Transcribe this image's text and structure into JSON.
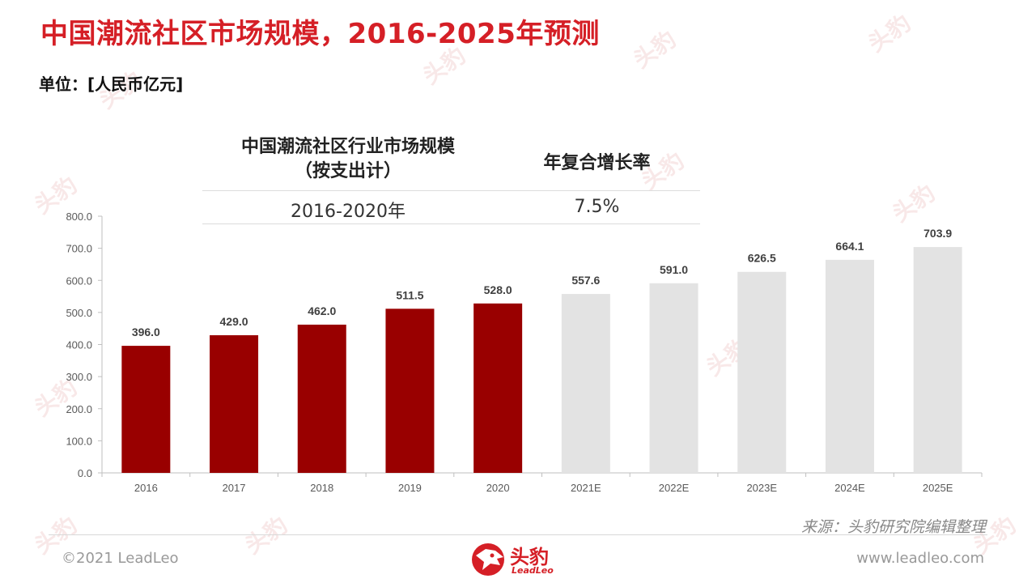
{
  "title": "中国潮流社区市场规模，2016-2025年预测",
  "unit": "单位：[人民币亿元]",
  "cagr_table": {
    "header_metric": "中国潮流社区行业市场规模",
    "header_metric_sub": "（按支出计）",
    "header_rate": "年复合增长率",
    "period": "2016-2020年",
    "rate": "7.5%"
  },
  "chart_data": {
    "type": "bar",
    "categories": [
      "2016",
      "2017",
      "2018",
      "2019",
      "2020",
      "2021E",
      "2022E",
      "2023E",
      "2024E",
      "2025E"
    ],
    "values": [
      396.0,
      429.0,
      462.0,
      511.5,
      528.0,
      557.6,
      591.0,
      626.5,
      664.1,
      703.9
    ],
    "value_labels": [
      "396.0",
      "429.0",
      "462.0",
      "511.5",
      "528.0",
      "557.6",
      "591.0",
      "626.5",
      "664.1",
      "703.9"
    ],
    "bar_colors": [
      "#990000",
      "#990000",
      "#990000",
      "#990000",
      "#990000",
      "#e3e3e3",
      "#e3e3e3",
      "#e3e3e3",
      "#e3e3e3",
      "#e3e3e3"
    ],
    "yticks": [
      "0.0",
      "100.0",
      "200.0",
      "300.0",
      "400.0",
      "500.0",
      "600.0",
      "700.0",
      "800.0"
    ],
    "ylim": [
      0,
      800
    ],
    "grid": false,
    "title": "",
    "xlabel": "",
    "ylabel": ""
  },
  "source": "来源：头豹研究院编辑整理",
  "footer": {
    "copyright": "©2021 LeadLeo",
    "website": "www.leadleo.com",
    "logo_text": "头豹",
    "logo_sub": "LeadLeo"
  },
  "watermark": {
    "text": "头豹",
    "sub": "LeadLeo",
    "color": "#f4d6d6"
  },
  "colors": {
    "accent": "#d51f26",
    "actual_bar": "#990000",
    "forecast_bar": "#e3e3e3"
  }
}
